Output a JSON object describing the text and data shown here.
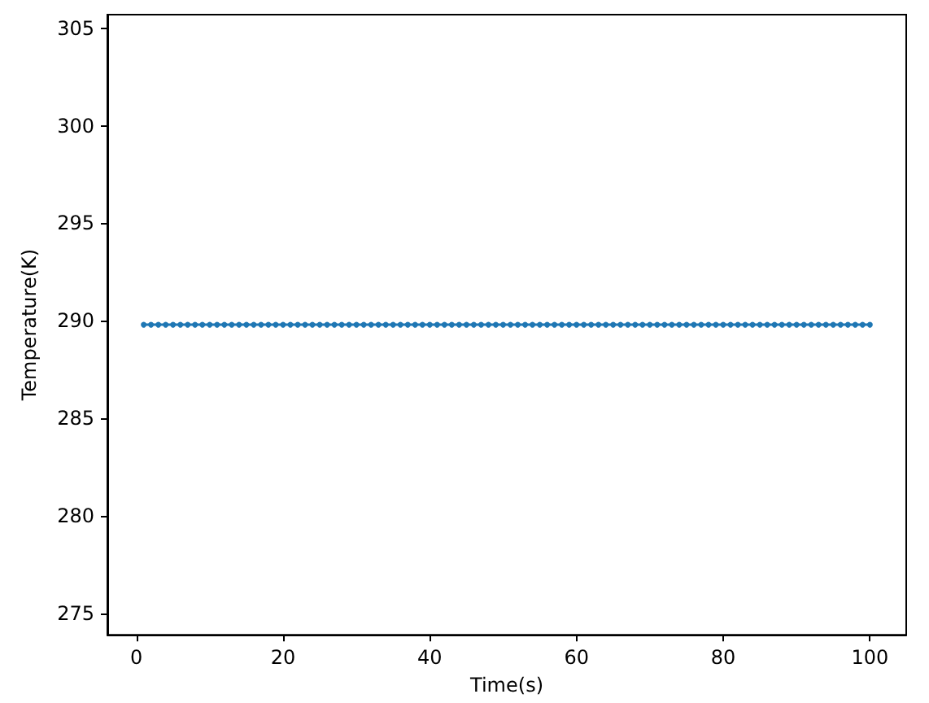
{
  "chart_data": {
    "type": "line",
    "xlabel": "Time(s)",
    "ylabel": "Temperature(K)",
    "marker": "circle",
    "line_style": "solid",
    "grid": false,
    "x": [
      1,
      2,
      3,
      4,
      5,
      6,
      7,
      8,
      9,
      10,
      11,
      12,
      13,
      14,
      15,
      16,
      17,
      18,
      19,
      20,
      21,
      22,
      23,
      24,
      25,
      26,
      27,
      28,
      29,
      30,
      31,
      32,
      33,
      34,
      35,
      36,
      37,
      38,
      39,
      40,
      41,
      42,
      43,
      44,
      45,
      46,
      47,
      48,
      49,
      50,
      51,
      52,
      53,
      54,
      55,
      56,
      57,
      58,
      59,
      60,
      61,
      62,
      63,
      64,
      65,
      66,
      67,
      68,
      69,
      70,
      71,
      72,
      73,
      74,
      75,
      76,
      77,
      78,
      79,
      80,
      81,
      82,
      83,
      84,
      85,
      86,
      87,
      88,
      89,
      90,
      91,
      92,
      93,
      94,
      95,
      96,
      97,
      98,
      99,
      100
    ],
    "series": [
      {
        "color": "#1f77b4",
        "values": [
          289.8,
          289.8,
          289.8,
          289.8,
          289.8,
          289.8,
          289.8,
          289.8,
          289.8,
          289.8,
          289.8,
          289.8,
          289.8,
          289.8,
          289.8,
          289.8,
          289.8,
          289.8,
          289.8,
          289.8,
          289.8,
          289.8,
          289.8,
          289.8,
          289.8,
          289.8,
          289.8,
          289.8,
          289.8,
          289.8,
          289.8,
          289.8,
          289.8,
          289.8,
          289.8,
          289.8,
          289.8,
          289.8,
          289.8,
          289.8,
          289.8,
          289.8,
          289.8,
          289.8,
          289.8,
          289.8,
          289.8,
          289.8,
          289.8,
          289.8,
          289.8,
          289.8,
          289.8,
          289.8,
          289.8,
          289.8,
          289.8,
          289.8,
          289.8,
          289.8,
          289.8,
          289.8,
          289.8,
          289.8,
          289.8,
          289.8,
          289.8,
          289.8,
          289.8,
          289.8,
          289.8,
          289.8,
          289.8,
          289.8,
          289.8,
          289.8,
          289.8,
          289.8,
          289.8,
          289.8,
          289.8,
          289.8,
          289.8,
          289.8,
          289.8,
          289.8,
          289.8,
          289.8,
          289.8,
          289.8,
          289.8,
          289.8,
          289.8,
          289.8,
          289.8,
          289.8,
          289.8,
          289.8,
          289.8,
          289.8
        ]
      }
    ],
    "xlim": [
      -3.95,
      104.95
    ],
    "xticks": [
      0,
      20,
      40,
      60,
      80,
      100
    ],
    "ylim": [
      273.9,
      305.7
    ],
    "yticks": [
      275,
      280,
      285,
      290,
      295,
      300,
      305
    ]
  }
}
